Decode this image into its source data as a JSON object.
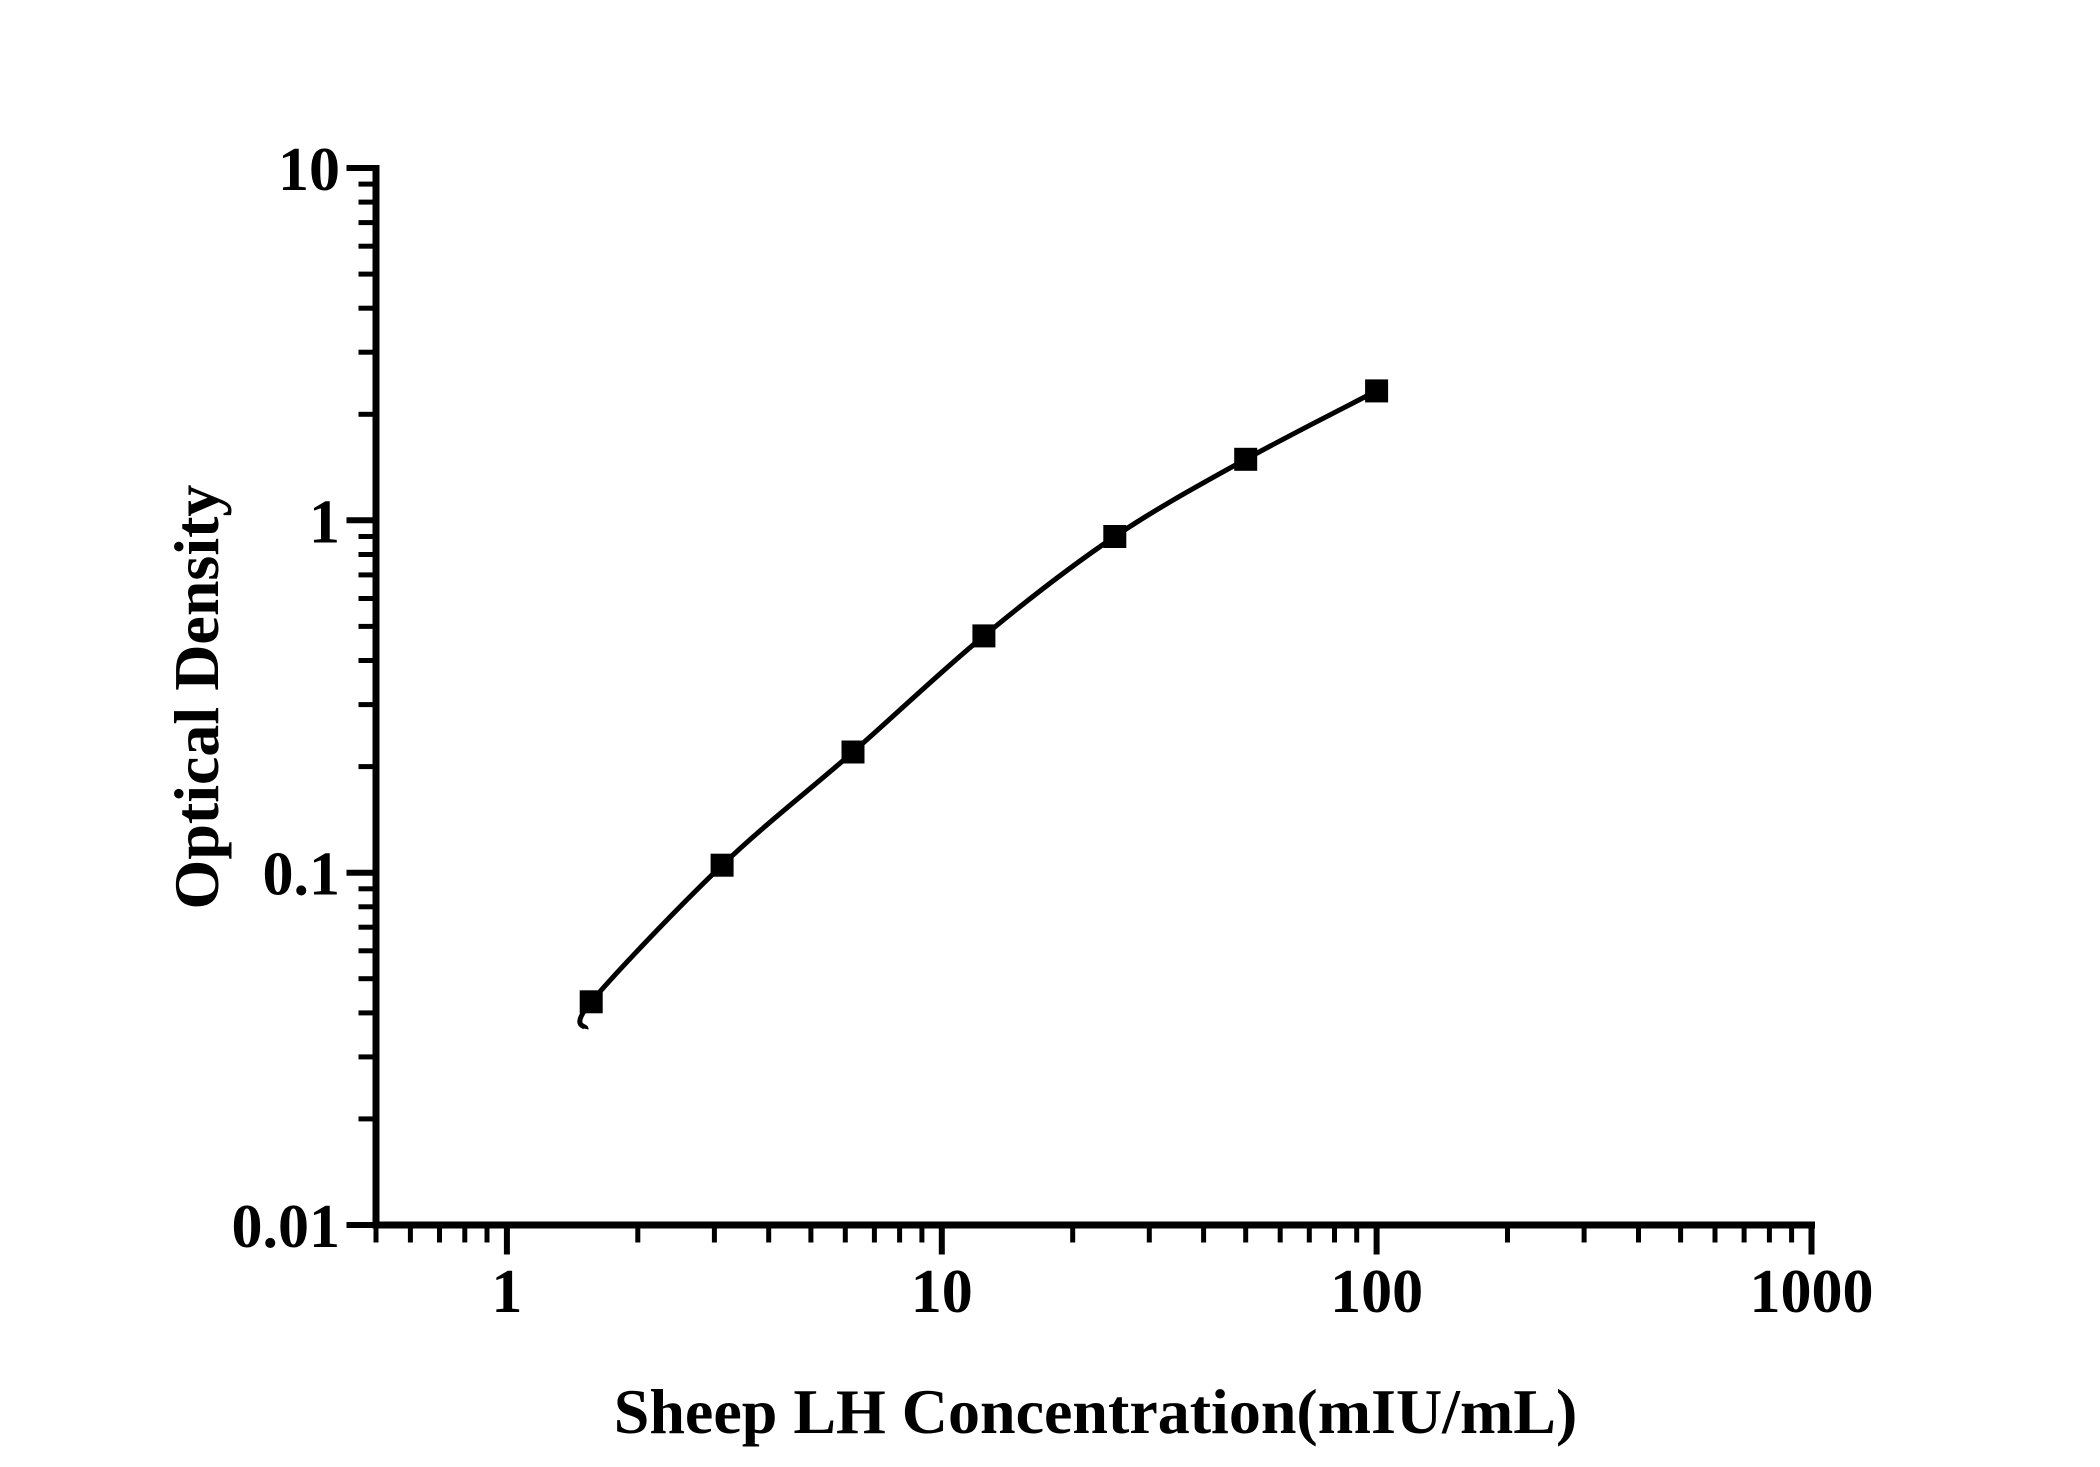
{
  "figure": {
    "background": "#ffffff",
    "ink_color": "#000000"
  },
  "chart_data": {
    "type": "line",
    "title": "",
    "xlabel": "Sheep LH Concentration(mIU/mL)",
    "ylabel": "Optical Density",
    "x_scale": "log",
    "y_scale": "log",
    "xlim": [
      0.5,
      1000
    ],
    "ylim": [
      0.01,
      10
    ],
    "x_major_ticks": [
      1,
      10,
      100,
      1000
    ],
    "x_major_tick_labels": [
      "1",
      "10",
      "100",
      "1000"
    ],
    "y_major_ticks": [
      0.01,
      0.1,
      1,
      10
    ],
    "y_major_tick_labels": [
      "0.01",
      "0.1",
      "1",
      "10"
    ],
    "minor_ticks": "log-auto",
    "grid": false,
    "legend": null,
    "series": [
      {
        "name": "standard-curve",
        "marker": "filled-square",
        "line": "solid",
        "color": "#000000",
        "points": [
          {
            "x": 1.5625,
            "y": 0.043
          },
          {
            "x": 3.125,
            "y": 0.105
          },
          {
            "x": 6.25,
            "y": 0.22
          },
          {
            "x": 12.5,
            "y": 0.47
          },
          {
            "x": 25,
            "y": 0.9
          },
          {
            "x": 50,
            "y": 1.49
          },
          {
            "x": 100,
            "y": 2.33
          }
        ]
      }
    ]
  }
}
